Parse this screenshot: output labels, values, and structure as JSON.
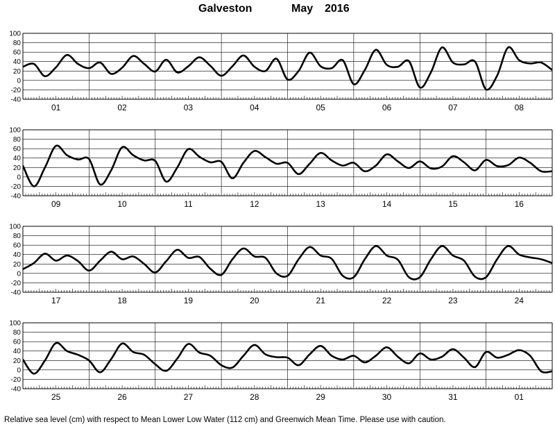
{
  "header": {
    "station": "Galveston",
    "month": "May",
    "year": "2016"
  },
  "footnote": "Relative sea level (cm) with respect to Mean Lower Low Water (112 cm) and Greenwich Mean Time. Please use with caution.",
  "chart_data": {
    "type": "line",
    "title": "Galveston May 2016",
    "ylim": [
      -40,
      100
    ],
    "yticks": [
      -40,
      -20,
      0,
      20,
      40,
      60,
      80,
      100
    ],
    "grid": true,
    "panels": [
      {
        "days": [
          "01",
          "02",
          "03",
          "04",
          "05",
          "06",
          "07",
          "08"
        ],
        "x": [
          0,
          4,
          8,
          12,
          16,
          20,
          24,
          28,
          32,
          36,
          40,
          44,
          48,
          52,
          56,
          60,
          64,
          68,
          72,
          76,
          80,
          84,
          88,
          92,
          96,
          100,
          104,
          108,
          112,
          116,
          120,
          124,
          128,
          132,
          136,
          140,
          144,
          148,
          152,
          156,
          160,
          164,
          168,
          172,
          176,
          180,
          184,
          188,
          192
        ],
        "values": [
          29,
          35,
          9,
          28,
          54,
          35,
          26,
          38,
          14,
          27,
          52,
          35,
          19,
          44,
          17,
          30,
          49,
          31,
          10,
          30,
          53,
          29,
          20,
          46,
          2,
          20,
          59,
          30,
          26,
          43,
          -8,
          22,
          65,
          33,
          29,
          41,
          -15,
          17,
          70,
          38,
          34,
          40,
          -19,
          10,
          70,
          43,
          36,
          38,
          22
        ]
      },
      {
        "days": [
          "09",
          "10",
          "11",
          "12",
          "13",
          "14",
          "15",
          "16"
        ],
        "x": [
          0,
          4,
          8,
          12,
          16,
          20,
          24,
          28,
          32,
          36,
          40,
          44,
          48,
          52,
          56,
          60,
          64,
          68,
          72,
          76,
          80,
          84,
          88,
          92,
          96,
          100,
          104,
          108,
          112,
          116,
          120,
          124,
          128,
          132,
          136,
          140,
          144,
          148,
          152,
          156,
          160,
          164,
          168,
          172,
          176,
          180,
          184,
          188,
          192
        ],
        "values": [
          24,
          -20,
          20,
          66,
          46,
          37,
          38,
          -16,
          14,
          63,
          46,
          35,
          34,
          -10,
          20,
          59,
          43,
          31,
          32,
          -3,
          30,
          55,
          42,
          28,
          30,
          6,
          28,
          51,
          35,
          24,
          30,
          12,
          24,
          48,
          33,
          19,
          33,
          18,
          22,
          44,
          31,
          14,
          36,
          23,
          25,
          41,
          30,
          12,
          12
        ]
      },
      {
        "days": [
          "17",
          "18",
          "19",
          "20",
          "21",
          "22",
          "23",
          "24"
        ],
        "x": [
          0,
          4,
          8,
          12,
          16,
          20,
          24,
          28,
          32,
          36,
          40,
          44,
          48,
          52,
          56,
          60,
          64,
          68,
          72,
          76,
          80,
          84,
          88,
          92,
          96,
          100,
          104,
          108,
          112,
          116,
          120,
          124,
          128,
          132,
          136,
          140,
          144,
          148,
          152,
          156,
          160,
          164,
          168,
          172,
          176,
          180,
          184,
          188,
          192
        ],
        "values": [
          9,
          22,
          42,
          27,
          38,
          26,
          6,
          27,
          46,
          30,
          36,
          20,
          2,
          26,
          50,
          33,
          35,
          10,
          -3,
          30,
          53,
          36,
          33,
          0,
          -5,
          30,
          56,
          38,
          31,
          -5,
          -8,
          30,
          58,
          38,
          29,
          -8,
          -8,
          30,
          58,
          38,
          27,
          -7,
          -8,
          30,
          58,
          40,
          34,
          30,
          22
        ]
      },
      {
        "days": [
          "25",
          "26",
          "27",
          "28",
          "29",
          "30",
          "31",
          "01"
        ],
        "x": [
          0,
          4,
          8,
          12,
          16,
          20,
          24,
          28,
          32,
          36,
          40,
          44,
          48,
          52,
          56,
          60,
          64,
          68,
          72,
          76,
          80,
          84,
          88,
          92,
          96,
          100,
          104,
          108,
          112,
          116,
          120,
          124,
          128,
          132,
          136,
          140,
          144,
          148,
          152,
          156,
          160,
          164,
          168,
          172,
          176,
          180,
          184,
          188,
          192
        ],
        "values": [
          22,
          -8,
          20,
          57,
          40,
          32,
          20,
          -5,
          23,
          56,
          38,
          32,
          12,
          -2,
          24,
          55,
          37,
          30,
          10,
          5,
          30,
          53,
          33,
          27,
          26,
          10,
          33,
          51,
          30,
          22,
          30,
          16,
          30,
          48,
          28,
          14,
          35,
          22,
          28,
          44,
          26,
          6,
          38,
          26,
          32,
          42,
          30,
          -3,
          -3
        ]
      }
    ]
  }
}
